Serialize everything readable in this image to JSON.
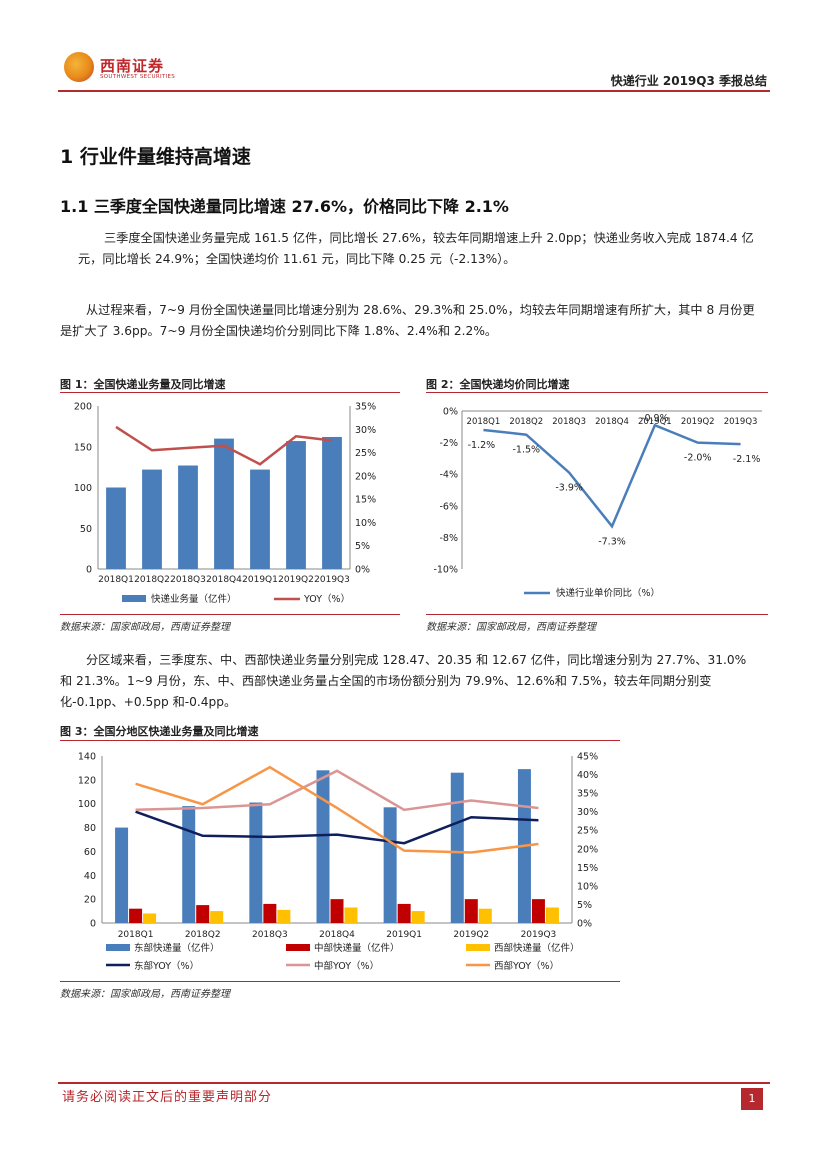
{
  "header": {
    "logo_cn": "西南证券",
    "logo_en": "SOUTHWEST SECURITIES",
    "report_title": "快递行业 2019Q3 季报总结"
  },
  "section": {
    "h1": "1 行业件量维持高增速",
    "h2": "1.1 三季度全国快递量同比增速 27.6%，价格同比下降 2.1%"
  },
  "paragraphs": [
    "三季度全国快递业务量完成 161.5 亿件，同比增长 27.6%，较去年同期增速上升 2.0pp；快递业务收入完成 1874.4 亿元，同比增长 24.9%；全国快递均价 11.61 元，同比下降 0.25 元（-2.13%）。",
    "从过程来看，7~9 月份全国快递量同比增速分别为 28.6%、29.3%和 25.0%，均较去年同期增速有所扩大，其中 8 月份更是扩大了 3.6pp。7~9 月份全国快递均价分别同比下降 1.8%、2.4%和 2.2%。",
    "分区域来看，三季度东、中、西部快递业务量分别完成 128.47、20.35 和 12.67 亿件，同比增速分别为 27.7%、31.0%和 21.3%。1~9 月份，东、中、西部快递业务量占全国的市场份额分别为 79.9%、12.6%和 7.5%，较去年同期分别变化-0.1pp、+0.5pp 和-0.4pp。"
  ],
  "figures": {
    "fig1_caption": "图 1：全国快递业务量及同比增速",
    "fig2_caption": "图 2：全国快递均价同比增速",
    "fig3_caption": "图 3：全国分地区快递业务量及同比增速",
    "source": "数据来源：国家邮政局，西南证券整理"
  },
  "footer": {
    "disclaimer": "请务必阅读正文后的重要声明部分",
    "page": "1"
  },
  "colors": {
    "blue": "#4a7ebb",
    "red": "#c0504d",
    "darkred": "#c00000",
    "yellow": "#ffc000",
    "navy": "#0f1f5c",
    "pink": "#d99694",
    "orange": "#f79646",
    "brand": "#b5282d"
  },
  "chart_data": [
    {
      "type": "bar",
      "categories": [
        "2018Q1",
        "2018Q2",
        "2018Q3",
        "2018Q4",
        "2019Q1",
        "2019Q2",
        "2019Q3"
      ],
      "series": [
        {
          "name": "快递业务量（亿件）",
          "values": [
            100,
            122,
            127,
            160,
            122,
            157,
            162
          ],
          "axis": "left",
          "kind": "bar"
        },
        {
          "name": "YOY（%）",
          "values": [
            30.5,
            25.5,
            26.0,
            26.5,
            22.5,
            28.5,
            27.6
          ],
          "axis": "right",
          "kind": "line"
        }
      ],
      "left_ticks": [
        "0",
        "50",
        "100",
        "150",
        "200"
      ],
      "right_ticks": [
        "0%",
        "5%",
        "10%",
        "15%",
        "20%",
        "25%",
        "30%",
        "35%"
      ],
      "ylim": [
        0,
        200
      ],
      "y2lim": [
        0,
        35
      ],
      "legend": "bottom"
    },
    {
      "type": "line",
      "categories": [
        "2018Q1",
        "2018Q2",
        "2018Q3",
        "2018Q4",
        "2019Q1",
        "2019Q2",
        "2019Q3"
      ],
      "series": [
        {
          "name": "快递行业单价同比（%）",
          "values": [
            -1.2,
            -1.5,
            -3.9,
            -7.3,
            -0.9,
            -2.0,
            -2.1
          ]
        }
      ],
      "labels": [
        "-1.2%",
        "-1.5%",
        "-3.9%",
        "-7.3%",
        "-0.9%",
        "-2.0%",
        "-2.1%"
      ],
      "y_ticks": [
        "0%",
        "-2%",
        "-4%",
        "-6%",
        "-8%",
        "-10%"
      ],
      "ylim": [
        -10,
        0
      ],
      "legend": "bottom"
    },
    {
      "type": "bar",
      "categories": [
        "2018Q1",
        "2018Q2",
        "2018Q3",
        "2018Q4",
        "2019Q1",
        "2019Q2",
        "2019Q3"
      ],
      "series": [
        {
          "name": "东部快递量（亿件）",
          "values": [
            80,
            98,
            101,
            128,
            97,
            126,
            129
          ],
          "axis": "left",
          "kind": "bar"
        },
        {
          "name": "中部快递量（亿件）",
          "values": [
            12,
            15,
            16,
            20,
            16,
            20,
            20
          ],
          "axis": "left",
          "kind": "bar"
        },
        {
          "name": "西部快递量（亿件）",
          "values": [
            8,
            10,
            11,
            13,
            10,
            12,
            13
          ],
          "axis": "left",
          "kind": "bar"
        },
        {
          "name": "东部YOY（%）",
          "values": [
            30.0,
            23.5,
            23.2,
            23.8,
            21.5,
            28.5,
            27.7
          ],
          "axis": "right",
          "kind": "line"
        },
        {
          "name": "中部YOY（%）",
          "values": [
            30.5,
            31.0,
            32.0,
            41.0,
            30.5,
            33.0,
            31.0
          ],
          "axis": "right",
          "kind": "line"
        },
        {
          "name": "西部YOY（%）",
          "values": [
            37.5,
            32.0,
            42.0,
            31.0,
            19.5,
            19.0,
            21.3
          ],
          "axis": "right",
          "kind": "line"
        }
      ],
      "left_ticks": [
        "0",
        "20",
        "40",
        "60",
        "80",
        "100",
        "120",
        "140"
      ],
      "right_ticks": [
        "0%",
        "5%",
        "10%",
        "15%",
        "20%",
        "25%",
        "30%",
        "35%",
        "40%",
        "45%"
      ],
      "ylim": [
        0,
        140
      ],
      "y2lim": [
        0,
        45
      ],
      "legend": "bottom"
    }
  ]
}
